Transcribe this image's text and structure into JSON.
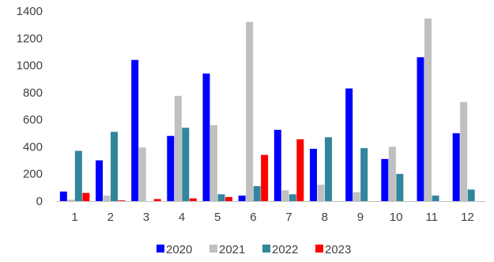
{
  "chart_data": {
    "type": "bar",
    "categories": [
      "1",
      "2",
      "3",
      "4",
      "5",
      "6",
      "7",
      "8",
      "9",
      "10",
      "11",
      "12"
    ],
    "series": [
      {
        "name": "2020",
        "color": "#0000ff",
        "values": [
          70,
          300,
          1040,
          480,
          940,
          40,
          525,
          385,
          830,
          310,
          1060,
          500
        ]
      },
      {
        "name": "2021",
        "color": "#c0c0c0",
        "values": [
          10,
          40,
          395,
          775,
          560,
          1320,
          80,
          120,
          65,
          400,
          1345,
          730
        ]
      },
      {
        "name": "2022",
        "color": "#31859c",
        "values": [
          370,
          510,
          0,
          540,
          50,
          110,
          50,
          470,
          390,
          200,
          40,
          85
        ]
      },
      {
        "name": "2023",
        "color": "#ff0000",
        "values": [
          60,
          5,
          15,
          20,
          30,
          340,
          455,
          0,
          0,
          0,
          0,
          0
        ]
      }
    ],
    "yticks": [
      "0",
      "200",
      "400",
      "600",
      "800",
      "1000",
      "1200",
      "1400"
    ],
    "ylim": [
      0,
      1400
    ],
    "legend_position": "bottom",
    "title": "",
    "xlabel": "",
    "ylabel": ""
  }
}
